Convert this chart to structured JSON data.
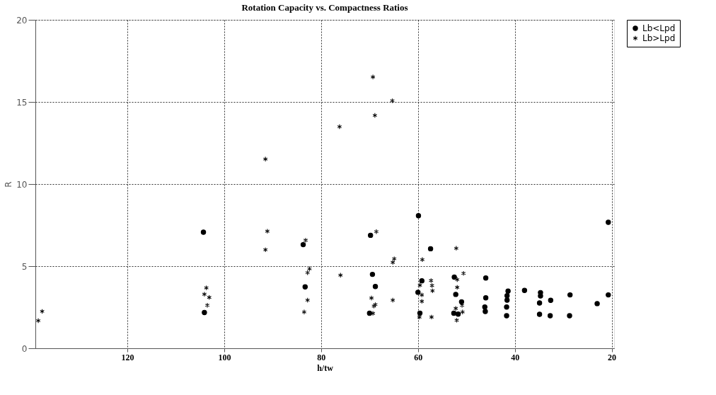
{
  "chart_data": {
    "type": "scatter",
    "title": "Rotation Capacity vs. Compactness Ratios",
    "xlabel": "h/tw",
    "ylabel": "R",
    "xlim": [
      139,
      19.5
    ],
    "xticks": [
      120,
      100,
      80,
      60,
      40,
      20
    ],
    "ylim": [
      0,
      20
    ],
    "yticks": [
      0,
      5,
      10,
      15,
      20
    ],
    "grid": true,
    "legend": "right",
    "series": [
      {
        "name": "Lb<Lpd",
        "color": "#000000",
        "marker": "circle",
        "x": [
          104.3,
          104.1,
          83.7,
          83.3,
          69.8,
          69.4,
          68.8,
          70.0,
          59.9,
          57.4,
          52.5,
          52.2,
          52.6,
          51.7,
          51.0,
          59.2,
          60.0,
          59.6,
          46.0,
          46.0,
          46.2,
          46.1,
          41.4,
          41.6,
          41.6,
          41.7,
          41.7,
          38.0,
          34.7,
          34.7,
          34.9,
          34.9,
          32.6,
          32.7,
          28.6,
          28.7,
          23.0,
          20.7,
          20.7
        ],
        "values": [
          7.07,
          2.18,
          6.31,
          3.74,
          6.88,
          4.5,
          3.76,
          2.13,
          8.07,
          6.06,
          4.33,
          3.28,
          2.13,
          2.08,
          2.83,
          4.11,
          3.41,
          2.14,
          4.28,
          3.07,
          2.51,
          2.24,
          3.48,
          3.2,
          2.93,
          2.51,
          1.98,
          3.52,
          3.39,
          3.19,
          2.76,
          2.07,
          2.92,
          1.98,
          3.25,
          1.98,
          2.72,
          7.67,
          3.25
        ]
      },
      {
        "name": "Lb>Lpd",
        "color": "#000000",
        "marker": "cross",
        "x": [
          138.4,
          137.6,
          103.7,
          104.1,
          103.1,
          103.5,
          91.5,
          91.1,
          91.5,
          83.2,
          82.4,
          82.8,
          82.8,
          83.5,
          76.2,
          76.0,
          69.3,
          65.3,
          68.9,
          68.6,
          64.9,
          65.2,
          69.6,
          69.1,
          68.8,
          69.3,
          65.2,
          52.1,
          59.1,
          50.6,
          51.9,
          51.9,
          52.2,
          50.9,
          50.8,
          52.0,
          59.6,
          59.2,
          59.2,
          59.7,
          57.2,
          57.3,
          57.1,
          57.0
        ],
        "values": [
          1.68,
          2.25,
          3.68,
          3.29,
          3.1,
          2.62,
          11.52,
          7.13,
          6.0,
          6.58,
          4.84,
          4.6,
          2.93,
          2.21,
          13.49,
          4.45,
          16.52,
          15.07,
          14.18,
          7.1,
          5.45,
          5.23,
          3.06,
          2.57,
          2.66,
          2.13,
          2.93,
          6.09,
          5.4,
          4.56,
          4.18,
          3.71,
          2.43,
          2.62,
          2.21,
          1.71,
          3.84,
          3.25,
          2.86,
          1.9,
          1.9,
          4.12,
          3.82,
          3.5
        ]
      }
    ]
  }
}
